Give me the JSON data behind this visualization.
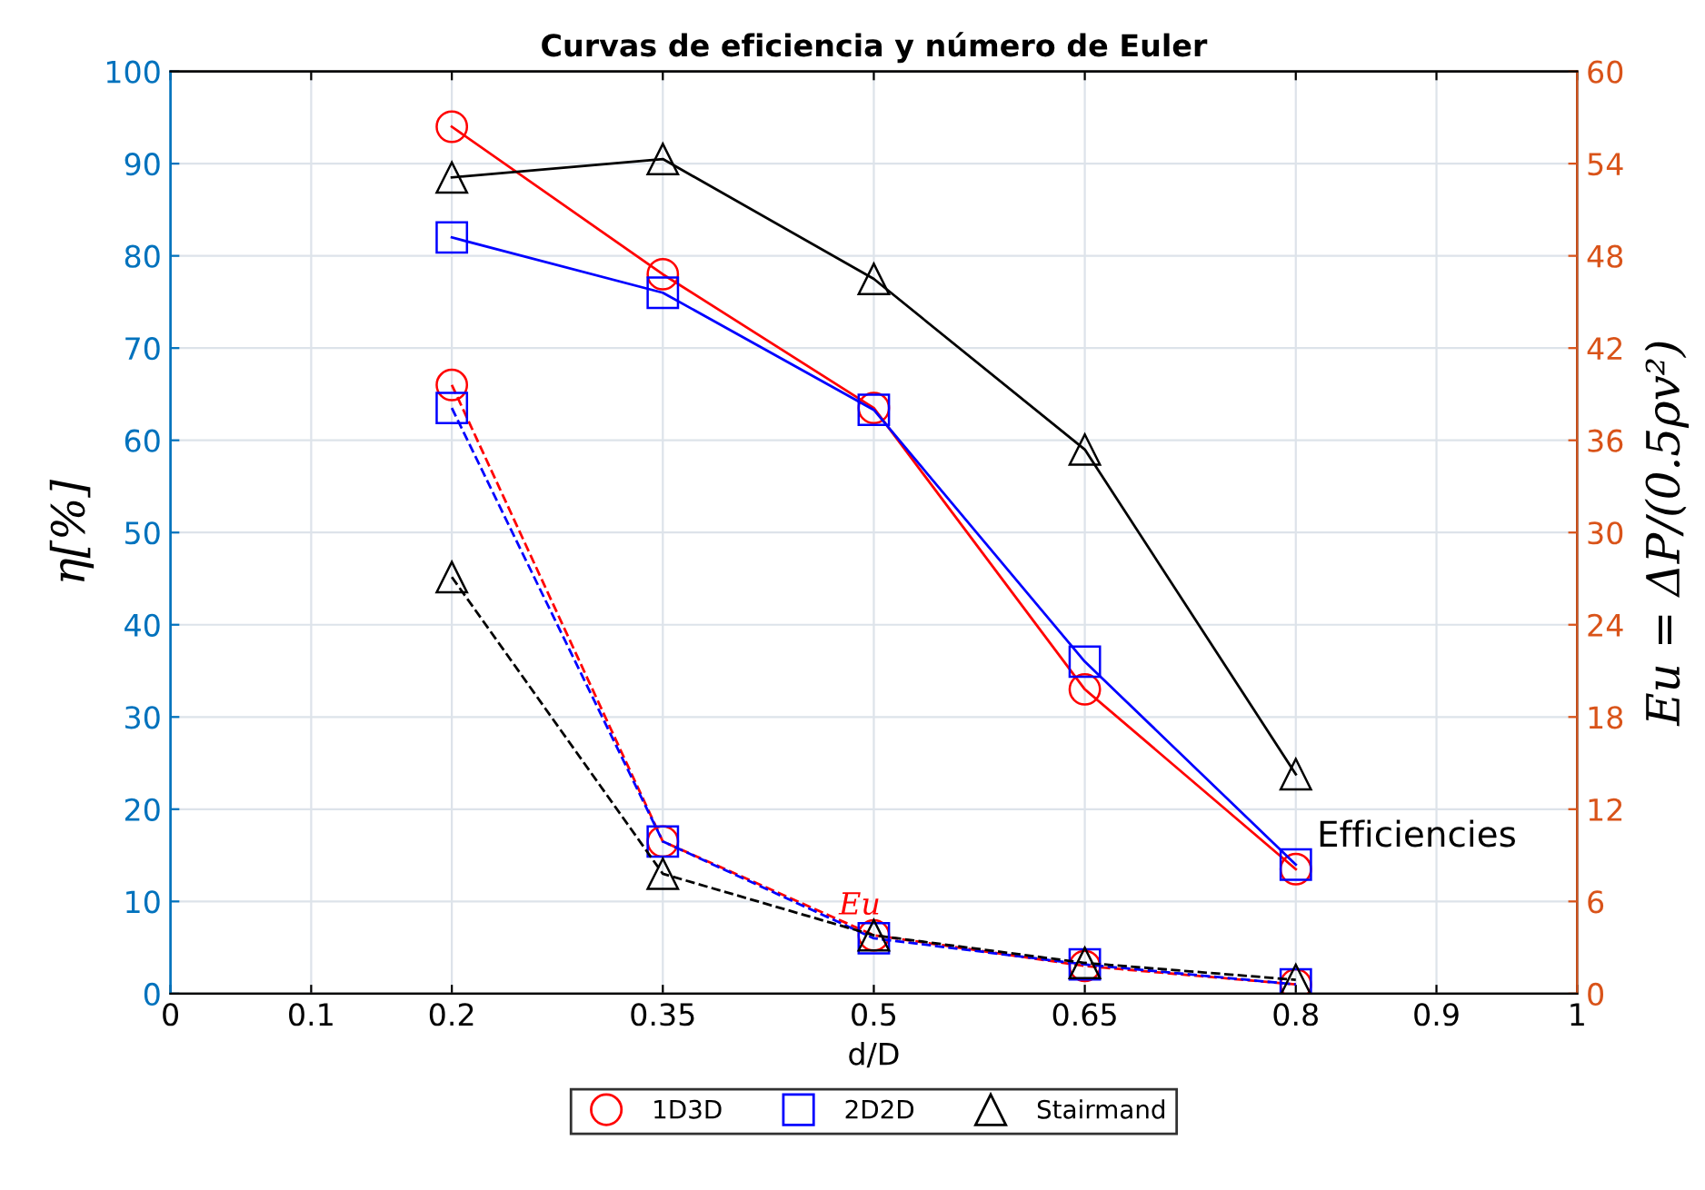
{
  "chart_data": {
    "type": "line",
    "title": "Curvas de eficiencia y número de Euler",
    "xlabel": "d/D",
    "ylabel": "η[%]",
    "y2label": "Eu = ΔP/(0.5ρv²)",
    "x": [
      0.2,
      0.35,
      0.5,
      0.65,
      0.8
    ],
    "series": [
      {
        "name": "1D3D",
        "color": "#ff0000",
        "marker": "circle",
        "line_style": "solid",
        "values": [
          94,
          78,
          63.5,
          33,
          13.5
        ]
      },
      {
        "name": "2D2D",
        "color": "#0000ff",
        "marker": "square",
        "line_style": "solid",
        "values": [
          82,
          76,
          63.3,
          36,
          14
        ]
      },
      {
        "name": "Stairmand",
        "color": "#000000",
        "marker": "triangle",
        "line_style": "solid",
        "values": [
          88.5,
          90.5,
          77.5,
          59,
          23.8
        ]
      },
      {
        "color": "#ff0000",
        "marker": "circle",
        "line_style": "dashed",
        "axis": "y2",
        "values": [
          39.6,
          9.9,
          3.8,
          1.8,
          0.6
        ]
      },
      {
        "color": "#0000ff",
        "marker": "square",
        "line_style": "dashed",
        "axis": "y2",
        "values": [
          38.1,
          9.9,
          3.6,
          1.9,
          0.6
        ]
      },
      {
        "color": "#000000",
        "marker": "triangle",
        "line_style": "dashed",
        "axis": "y2",
        "values": [
          27.1,
          7.8,
          3.8,
          2.0,
          0.9
        ]
      }
    ],
    "xlim": [
      0,
      1
    ],
    "xticks": [
      0,
      0.1,
      0.2,
      0.35,
      0.5,
      0.65,
      0.8,
      0.9,
      1
    ],
    "ylim": [
      0,
      100
    ],
    "yticks": [
      0,
      10,
      20,
      30,
      40,
      50,
      60,
      70,
      80,
      90,
      100
    ],
    "y2lim": [
      0,
      60
    ],
    "y2ticks": [
      0,
      6,
      12,
      18,
      24,
      30,
      36,
      42,
      48,
      54,
      60
    ],
    "annotations": [
      "Efficiencies",
      "Eu"
    ],
    "grid": true,
    "legend": "bottom"
  }
}
